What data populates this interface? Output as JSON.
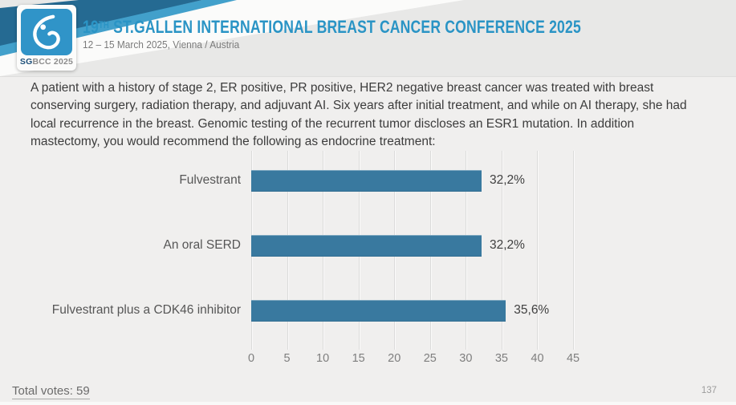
{
  "header": {
    "logo": {
      "icon": "sgbcc-breast-logo",
      "caption_primary": "SG",
      "caption_secondary": "BCC 2025"
    },
    "title_num": "19",
    "title_sup": "TH",
    "title_rest": " ST.GALLEN INTERNATIONAL BREAST CANCER CONFERENCE 2025",
    "subtitle": "12 – 15 March 2025, Vienna / Austria"
  },
  "question": "A patient with a history of stage 2, ER positive, PR positive, HER2 negative breast cancer was treated with breast conserving surgery, radiation therapy, and adjuvant AI.  Six years after initial treatment, and while on AI therapy, she had local recurrence in the breast.  Genomic testing of the recurrent tumor discloses an ESR1 mutation.  In addition mastectomy, you would recommend the following as endocrine treatment:",
  "chart_data": {
    "type": "bar",
    "orientation": "horizontal",
    "title": "",
    "categories": [
      "Fulvestrant",
      "An oral SERD",
      "Fulvestrant plus a CDK46 inhibitor"
    ],
    "values": [
      32.2,
      32.2,
      35.6
    ],
    "value_labels": [
      "32,2%",
      "32,2%",
      "35,6%"
    ],
    "x_ticks": [
      0,
      5,
      10,
      15,
      20,
      25,
      30,
      35,
      40,
      45
    ],
    "xlim": [
      0,
      45
    ],
    "grid": true,
    "legend": false,
    "bar_color": "#39799f"
  },
  "footer": {
    "total_votes": "Total votes: 59",
    "page_number": "137"
  },
  "colors": {
    "title_accent": "#2a94c5",
    "bar": "#39799f",
    "logo_square": "#3094c8",
    "header_dark_band": "#256a92",
    "header_light_band": "#42a0cb"
  }
}
